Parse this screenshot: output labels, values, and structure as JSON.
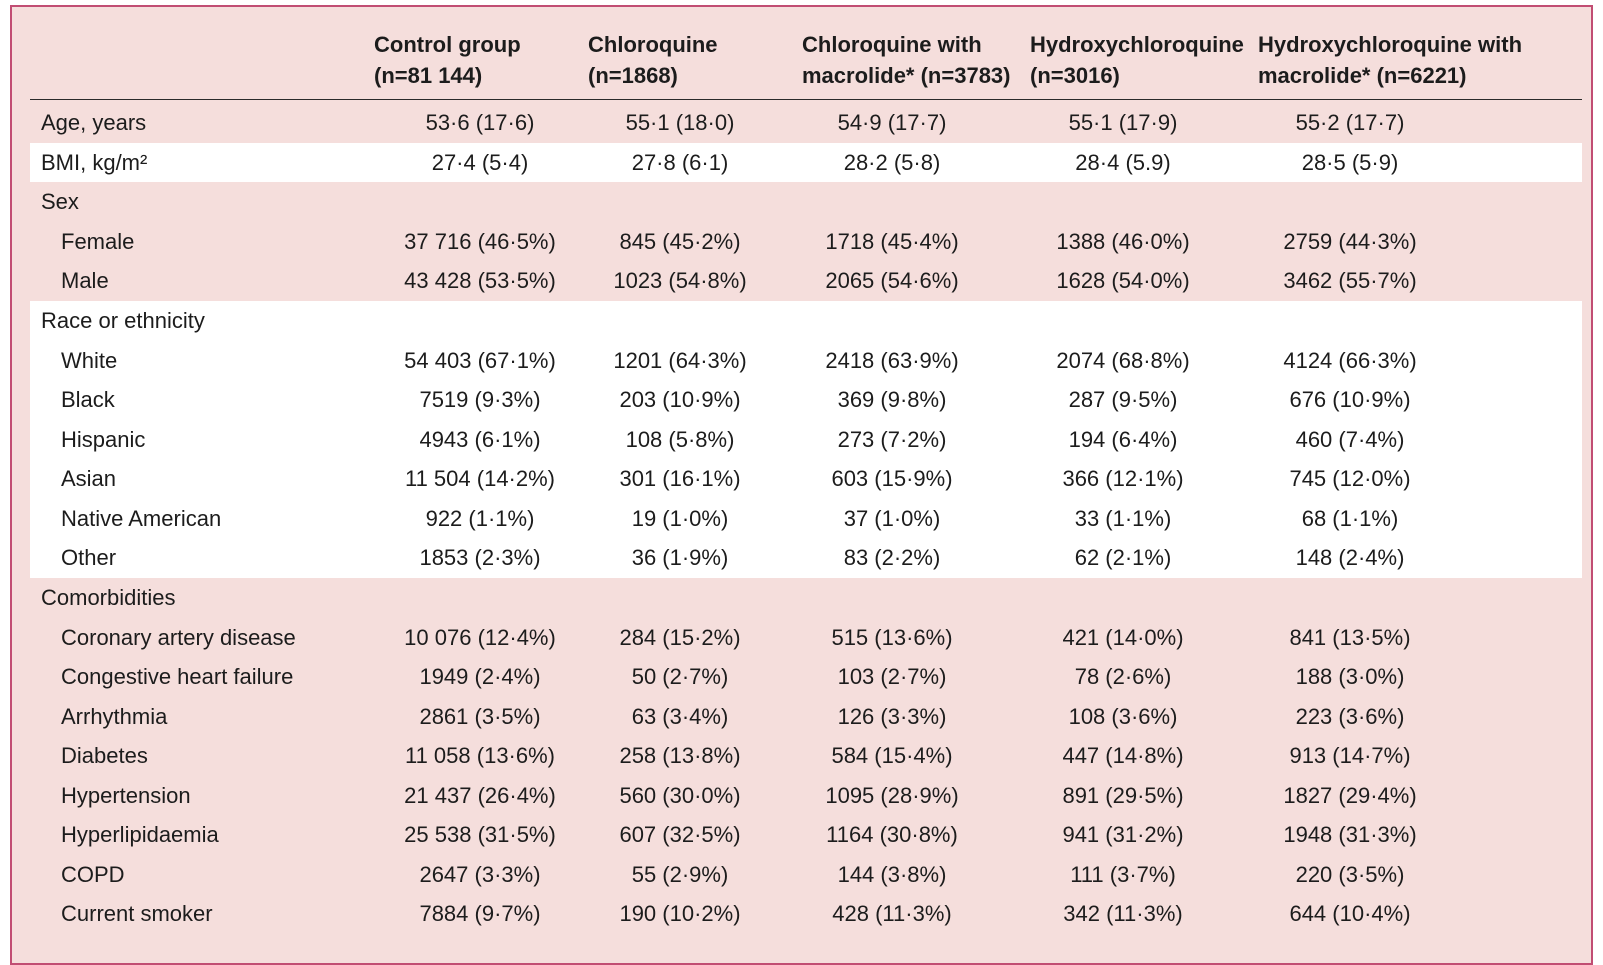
{
  "table": {
    "columns": [
      {
        "line1": "Control group",
        "line2": "(n=81 144)"
      },
      {
        "line1": "Chloroquine",
        "line2": "(n=1868)"
      },
      {
        "line1": "Chloroquine with",
        "line2": "macrolide* (n=3783)"
      },
      {
        "line1": "Hydroxychloroquine",
        "line2": "(n=3016)"
      },
      {
        "line1": "Hydroxychloroquine with",
        "line2": "macrolide* (n=6221)"
      }
    ],
    "rows": [
      {
        "label": "Age, years",
        "values": [
          "53·6 (17·6)",
          "55·1 (18·0)",
          "54·9 (17·7)",
          "55·1 (17·9)",
          "55·2 (17·7)"
        ]
      },
      {
        "label": "BMI, kg/m²",
        "values": [
          "27·4 (5·4)",
          "27·8 (6·1)",
          "28·2 (5·8)",
          "28·4 (5.9)",
          "28·5 (5·9)"
        ]
      },
      {
        "label": "Sex",
        "values": [
          "",
          "",
          "",
          "",
          ""
        ]
      },
      {
        "label": "Female",
        "values": [
          "37 716 (46·5%)",
          "845 (45·2%)",
          "1718 (45·4%)",
          "1388 (46·0%)",
          "2759 (44·3%)"
        ]
      },
      {
        "label": "Male",
        "values": [
          "43 428 (53·5%)",
          "1023 (54·8%)",
          "2065 (54·6%)",
          "1628 (54·0%)",
          "3462 (55·7%)"
        ]
      },
      {
        "label": "Race or ethnicity",
        "values": [
          "",
          "",
          "",
          "",
          ""
        ]
      },
      {
        "label": "White",
        "values": [
          "54 403 (67·1%)",
          "1201 (64·3%)",
          "2418 (63·9%)",
          "2074 (68·8%)",
          "4124 (66·3%)"
        ]
      },
      {
        "label": "Black",
        "values": [
          "7519 (9·3%)",
          "203 (10·9%)",
          "369 (9·8%)",
          "287 (9·5%)",
          "676 (10·9%)"
        ]
      },
      {
        "label": "Hispanic",
        "values": [
          "4943 (6·1%)",
          "108 (5·8%)",
          "273 (7·2%)",
          "194 (6·4%)",
          "460 (7·4%)"
        ]
      },
      {
        "label": "Asian",
        "values": [
          "11 504 (14·2%)",
          "301 (16·1%)",
          "603 (15·9%)",
          "366 (12·1%)",
          "745 (12·0%)"
        ]
      },
      {
        "label": "Native American",
        "values": [
          "922 (1·1%)",
          "19 (1·0%)",
          "37 (1·0%)",
          "33 (1·1%)",
          "68 (1·1%)"
        ]
      },
      {
        "label": "Other",
        "values": [
          "1853 (2·3%)",
          "36 (1·9%)",
          "83 (2·2%)",
          "62 (2·1%)",
          "148 (2·4%)"
        ]
      },
      {
        "label": "Comorbidities",
        "values": [
          "",
          "",
          "",
          "",
          ""
        ]
      },
      {
        "label": "Coronary artery disease",
        "values": [
          "10 076 (12·4%)",
          "284 (15·2%)",
          "515 (13·6%)",
          "421 (14·0%)",
          "841 (13·5%)"
        ]
      },
      {
        "label": "Congestive heart failure",
        "values": [
          "1949 (2·4%)",
          "50 (2·7%)",
          "103 (2·7%)",
          "78 (2·6%)",
          "188 (3·0%)"
        ]
      },
      {
        "label": "Arrhythmia",
        "values": [
          "2861 (3·5%)",
          "63 (3·4%)",
          "126 (3·3%)",
          "108 (3·6%)",
          "223 (3·6%)"
        ]
      },
      {
        "label": "Diabetes",
        "values": [
          "11 058 (13·6%)",
          "258 (13·8%)",
          "584 (15·4%)",
          "447 (14·8%)",
          "913 (14·7%)"
        ]
      },
      {
        "label": "Hypertension",
        "values": [
          "21 437 (26·4%)",
          "560 (30·0%)",
          "1095 (28·9%)",
          "891 (29·5%)",
          "1827 (29·4%)"
        ]
      },
      {
        "label": "Hyperlipidaemia",
        "values": [
          "25 538 (31·5%)",
          "607 (32·5%)",
          "1164 (30·8%)",
          "941 (31·2%)",
          "1948 (31·3%)"
        ]
      },
      {
        "label": "COPD",
        "values": [
          "2647 (3·3%)",
          "55 (2·9%)",
          "144 (3·8%)",
          "111 (3·7%)",
          "220 (3·5%)"
        ]
      },
      {
        "label": "Current smoker",
        "values": [
          "7884 (9·7%)",
          "190 (10·2%)",
          "428 (11·3%)",
          "342 (11·3%)",
          "644 (10·4%)"
        ]
      }
    ]
  },
  "colors": {
    "panel": "#f5dedc",
    "band": "#ffffff",
    "border": "#c14d73",
    "text": "#1c1c1c"
  }
}
